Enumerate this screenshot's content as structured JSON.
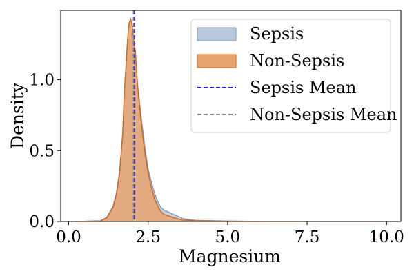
{
  "chart_data": {
    "type": "area",
    "title": "",
    "xlabel": "Magnesium",
    "ylabel": "Density",
    "xlim": [
      -0.25,
      10.45
    ],
    "ylim": [
      0,
      1.49
    ],
    "xticks": [
      0.0,
      2.5,
      5.0,
      7.5,
      10.0
    ],
    "xtick_labels": [
      "0.0",
      "2.5",
      "5.0",
      "7.5",
      "10.0"
    ],
    "yticks": [
      0.0,
      0.5,
      1.0
    ],
    "ytick_labels": [
      "0.0",
      "0.5",
      "1.0"
    ],
    "grid": false,
    "legend_position": "top-right",
    "series": [
      {
        "name": "Sepsis",
        "kind": "density-area",
        "fill": "#b7c8db",
        "stroke": "#7f9bb8",
        "x": [
          0.2,
          1.0,
          1.2,
          1.4,
          1.5,
          1.6,
          1.7,
          1.75,
          1.8,
          1.85,
          1.9,
          1.95,
          2.0,
          2.05,
          2.1,
          2.15,
          2.2,
          2.3,
          2.4,
          2.5,
          2.6,
          2.7,
          2.8,
          2.9,
          3.0,
          3.2,
          3.4,
          3.6,
          4.0,
          5.0,
          6.0,
          8.0,
          9.9
        ],
        "y": [
          0.0,
          0.005,
          0.03,
          0.11,
          0.2,
          0.35,
          0.62,
          0.8,
          1.0,
          1.17,
          1.28,
          1.33,
          1.3,
          1.22,
          1.12,
          0.98,
          0.9,
          0.7,
          0.52,
          0.37,
          0.28,
          0.2,
          0.14,
          0.1,
          0.08,
          0.06,
          0.04,
          0.02,
          0.008,
          0.003,
          0.001,
          0.0,
          0.0
        ]
      },
      {
        "name": "Non-Sepsis",
        "kind": "density-area",
        "fill": "#e9a36f",
        "stroke": "#cc6620",
        "x": [
          0.2,
          1.0,
          1.2,
          1.4,
          1.5,
          1.6,
          1.7,
          1.75,
          1.8,
          1.85,
          1.9,
          1.95,
          2.0,
          2.05,
          2.1,
          2.15,
          2.2,
          2.3,
          2.4,
          2.5,
          2.6,
          2.7,
          2.8,
          2.9,
          3.0,
          3.2,
          3.4,
          3.6,
          4.0,
          5.0,
          6.0,
          8.0,
          9.9
        ],
        "y": [
          0.0,
          0.004,
          0.025,
          0.1,
          0.19,
          0.34,
          0.62,
          0.92,
          1.08,
          1.28,
          1.4,
          1.43,
          1.38,
          1.28,
          1.2,
          1.02,
          0.88,
          0.66,
          0.48,
          0.34,
          0.24,
          0.16,
          0.11,
          0.07,
          0.05,
          0.035,
          0.02,
          0.01,
          0.005,
          0.002,
          0.001,
          0.0,
          0.0
        ]
      },
      {
        "name": "Sepsis Mean",
        "kind": "vline",
        "value": 2.07,
        "color": "#1a1acc",
        "dash": "dashed"
      },
      {
        "name": "Non-Sepsis Mean",
        "kind": "vline",
        "value": 2.04,
        "color": "#808080",
        "dash": "dashed"
      }
    ]
  }
}
